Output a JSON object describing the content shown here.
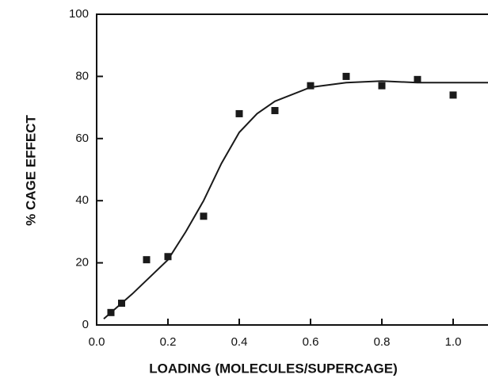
{
  "chart_data": {
    "type": "scatter",
    "x_label": "LOADING (MOLECULES/SUPERCAGE)",
    "y_label": "% CAGE EFFECT",
    "xlim": [
      0,
      1.1
    ],
    "ylim": [
      0,
      100
    ],
    "xticks": [
      {
        "value": 0,
        "label": "0.0"
      },
      0.2,
      0.4,
      0.6,
      0.8,
      {
        "value": 1,
        "label": "1.0"
      }
    ],
    "yticks": [
      0,
      20,
      40,
      60,
      80,
      100
    ],
    "color": "#1a1a1a",
    "points": {
      "x": [
        0.04,
        0.07,
        0.14,
        0.2,
        0.3,
        0.4,
        0.5,
        0.6,
        0.7,
        0.8,
        0.9,
        1.0
      ],
      "y": [
        4,
        7,
        21,
        22,
        35,
        68,
        69,
        77,
        80,
        77,
        79,
        74
      ]
    },
    "fit": {
      "x": [
        0.02,
        0.1,
        0.2,
        0.25,
        0.3,
        0.35,
        0.4,
        0.45,
        0.5,
        0.6,
        0.7,
        0.8,
        0.9,
        1.0,
        1.1
      ],
      "y": [
        2,
        10,
        21,
        30,
        40,
        52,
        62,
        68,
        72,
        76.5,
        78,
        78.5,
        78,
        78,
        78
      ]
    }
  }
}
